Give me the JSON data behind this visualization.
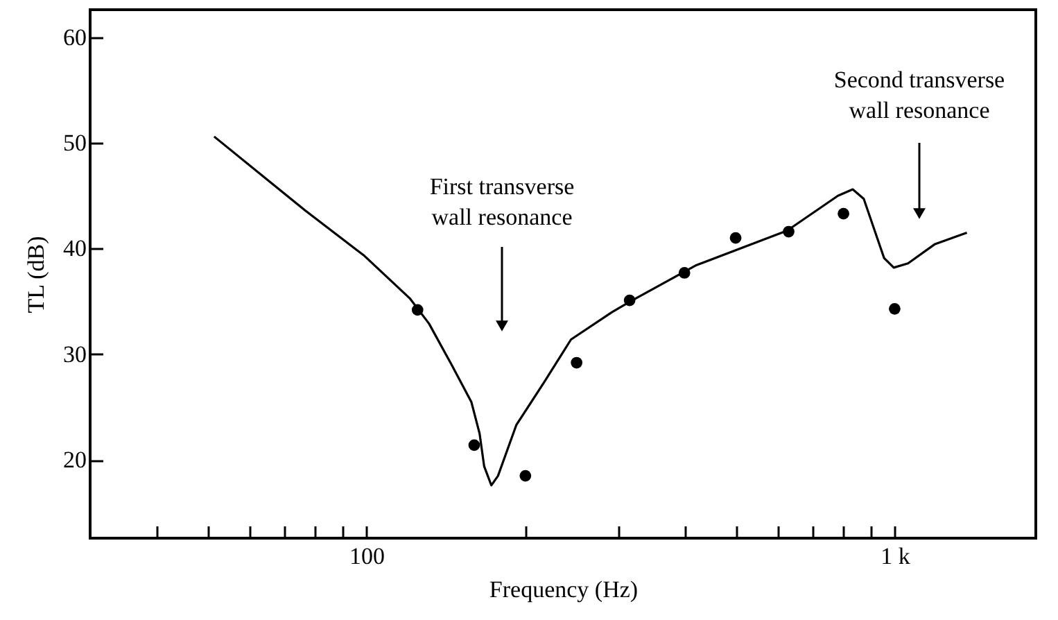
{
  "chart_data": {
    "type": "line",
    "xlabel": "Frequency (Hz)",
    "ylabel": "TL (dB)",
    "log": "x",
    "xlim": [
      30,
      1850
    ],
    "ylim": [
      12.6,
      62.6
    ],
    "xticks": [
      {
        "value": 40,
        "label": null
      },
      {
        "value": 50,
        "label": null
      },
      {
        "value": 60,
        "label": null
      },
      {
        "value": 70,
        "label": null
      },
      {
        "value": 80,
        "label": null
      },
      {
        "value": 90,
        "label": null
      },
      100,
      {
        "value": 200,
        "label": null
      },
      {
        "value": 300,
        "label": null
      },
      {
        "value": 400,
        "label": null
      },
      {
        "value": 500,
        "label": null
      },
      {
        "value": 600,
        "label": null
      },
      {
        "value": 700,
        "label": null
      },
      {
        "value": 800,
        "label": null
      },
      {
        "value": 900,
        "label": null
      },
      {
        "value": 1000,
        "label": "1 k"
      }
    ],
    "yticks": [
      20,
      30,
      40,
      50,
      60
    ],
    "series": [
      {
        "color": "#000000",
        "marker": "none",
        "line_style": "solid",
        "x": [
          51.5,
          76.6,
          99.2,
          120.8,
          131.4,
          145,
          158,
          163.8,
          167.1,
          172.4,
          177.5,
          192.2,
          216.7,
          244,
          292,
          316,
          420,
          626,
          781,
          833,
          874,
          955,
          996,
          1060,
          1190,
          1370
        ],
        "values": [
          50.6,
          43.6,
          39.3,
          35.3,
          32.9,
          29.0,
          25.5,
          22.5,
          19.4,
          17.6,
          18.5,
          23.3,
          27.3,
          31.4,
          34.0,
          35.0,
          38.4,
          41.7,
          45.0,
          45.6,
          44.7,
          39.1,
          38.2,
          38.6,
          40.4,
          41.5
        ]
      },
      {
        "type": "scatter",
        "color": "#000000",
        "marker": "circle",
        "x": [
          125,
          160,
          200,
          250,
          315,
          400,
          500,
          630,
          800,
          1000
        ],
        "values": [
          34.2,
          21.4,
          18.5,
          29.2,
          35.1,
          37.7,
          41.0,
          41.6,
          43.3,
          34.3
        ]
      }
    ],
    "annotations": [
      "First transverse\nwall resonance",
      "Second transverse\nwall resonance"
    ]
  }
}
